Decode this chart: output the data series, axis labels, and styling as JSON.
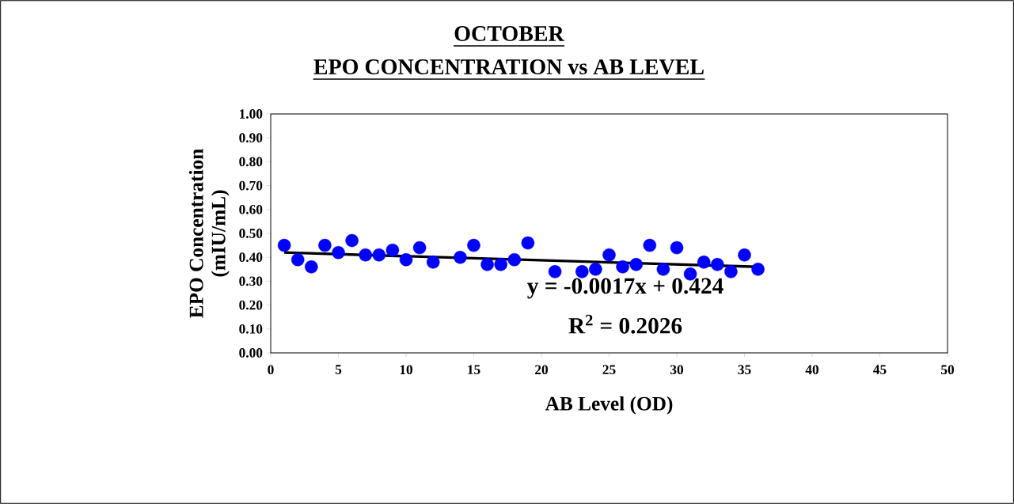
{
  "chart_data": {
    "type": "scatter",
    "title": "OCTOBER",
    "subtitle": "EPO CONCENTRATION vs AB LEVEL",
    "xlabel": "AB Level (OD)",
    "ylabel": "EPO Concentration\n(mIU/mL)",
    "xlim": [
      0,
      50
    ],
    "xticks": [
      0,
      5,
      10,
      15,
      20,
      25,
      30,
      35,
      40,
      45,
      50
    ],
    "ylim": [
      0,
      1
    ],
    "yticks": [
      {
        "value": 0,
        "label": "0.00"
      },
      {
        "value": 0.1,
        "label": "0.10"
      },
      {
        "value": 0.2,
        "label": "0.20"
      },
      {
        "value": 0.3,
        "label": "0.30"
      },
      {
        "value": 0.4,
        "label": "0.40"
      },
      {
        "value": 0.5,
        "label": "0.50"
      },
      {
        "value": 0.6,
        "label": "0.60"
      },
      {
        "value": 0.7,
        "label": "0.70"
      },
      {
        "value": 0.8,
        "label": "0.80"
      },
      {
        "value": 0.9,
        "label": "0.90"
      },
      {
        "value": 1,
        "label": "1.00"
      }
    ],
    "grid": false,
    "marker": "circle",
    "series": [
      {
        "type": "scatter",
        "color": "#0000ff",
        "x": [
          1,
          2,
          3,
          4,
          5,
          6,
          7,
          8,
          9,
          10,
          11,
          12,
          14,
          15,
          16,
          17,
          18,
          19,
          21,
          23,
          24,
          25,
          26,
          27,
          28,
          29,
          30,
          31,
          32,
          33,
          34,
          35,
          36
        ],
        "values": [
          0.45,
          0.39,
          0.36,
          0.45,
          0.42,
          0.47,
          0.41,
          0.41,
          0.43,
          0.39,
          0.44,
          0.38,
          0.4,
          0.45,
          0.37,
          0.37,
          0.39,
          0.46,
          0.34,
          0.34,
          0.35,
          0.41,
          0.36,
          0.37,
          0.45,
          0.35,
          0.44,
          0.33,
          0.38,
          0.37,
          0.34,
          0.41,
          0.35
        ]
      },
      {
        "type": "line",
        "color": "#000000",
        "marker": "none",
        "line_style": "solid",
        "x": [
          1,
          36
        ],
        "values": [
          0.42,
          0.36
        ]
      }
    ],
    "annotations": [
      "y = -0.0017x + 0.424",
      "R$^{2}$ = 0.2026"
    ]
  }
}
